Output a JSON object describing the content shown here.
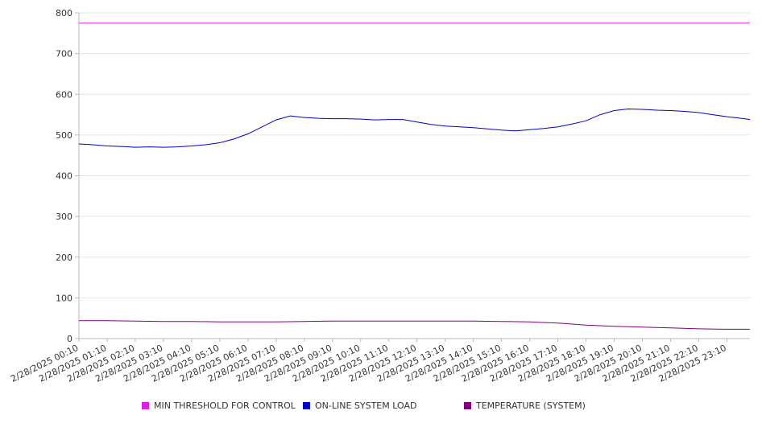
{
  "chart_data": {
    "type": "line",
    "ylim": [
      0,
      800
    ],
    "yticks": [
      0,
      100,
      200,
      300,
      400,
      500,
      600,
      700,
      800
    ],
    "grid": true,
    "legend_position": "bottom",
    "x_range": [
      "2/28/2025 00:10",
      "2/28/2025 23:59"
    ],
    "xtick_labels": [
      "2/28/2025 00:10",
      "2/28/2025 01:10",
      "2/28/2025 02:10",
      "2/28/2025 03:10",
      "2/28/2025 04:10",
      "2/28/2025 05:10",
      "2/28/2025 06:10",
      "2/28/2025 07:10",
      "2/28/2025 08:10",
      "2/28/2025 09:10",
      "2/28/2025 10:10",
      "2/28/2025 11:10",
      "2/28/2025 12:10",
      "2/28/2025 13:10",
      "2/28/2025 14:10",
      "2/28/2025 15:10",
      "2/28/2025 16:10",
      "2/28/2025 17:10",
      "2/28/2025 18:10",
      "2/28/2025 19:10",
      "2/28/2025 20:10",
      "2/28/2025 21:10",
      "2/28/2025 22:10",
      "2/28/2025 23:10"
    ],
    "series": [
      {
        "name": "MIN THRESHOLD FOR CONTROL",
        "color": "#e020e0",
        "points": [
          [
            "2/28/2025 00:10",
            775
          ],
          [
            "2/28/2025 23:59",
            775
          ]
        ]
      },
      {
        "name": "ON-LINE SYSTEM LOAD",
        "color": "#0000cc",
        "points": [
          [
            "2/28/2025 00:10",
            478
          ],
          [
            "2/28/2025 00:40",
            476
          ],
          [
            "2/28/2025 01:10",
            473
          ],
          [
            "2/28/2025 01:40",
            472
          ],
          [
            "2/28/2025 02:10",
            470
          ],
          [
            "2/28/2025 02:40",
            471
          ],
          [
            "2/28/2025 03:10",
            470
          ],
          [
            "2/28/2025 03:40",
            471
          ],
          [
            "2/28/2025 04:10",
            473
          ],
          [
            "2/28/2025 04:40",
            476
          ],
          [
            "2/28/2025 05:10",
            481
          ],
          [
            "2/28/2025 05:40",
            490
          ],
          [
            "2/28/2025 06:10",
            503
          ],
          [
            "2/28/2025 06:40",
            520
          ],
          [
            "2/28/2025 07:10",
            537
          ],
          [
            "2/28/2025 07:40",
            547
          ],
          [
            "2/28/2025 08:10",
            543
          ],
          [
            "2/28/2025 08:40",
            541
          ],
          [
            "2/28/2025 09:10",
            540
          ],
          [
            "2/28/2025 09:40",
            540
          ],
          [
            "2/28/2025 10:10",
            539
          ],
          [
            "2/28/2025 10:40",
            537
          ],
          [
            "2/28/2025 11:10",
            538
          ],
          [
            "2/28/2025 11:40",
            538
          ],
          [
            "2/28/2025 12:10",
            532
          ],
          [
            "2/28/2025 12:40",
            526
          ],
          [
            "2/28/2025 13:10",
            522
          ],
          [
            "2/28/2025 13:40",
            520
          ],
          [
            "2/28/2025 14:10",
            518
          ],
          [
            "2/28/2025 14:40",
            515
          ],
          [
            "2/28/2025 15:10",
            512
          ],
          [
            "2/28/2025 15:40",
            510
          ],
          [
            "2/28/2025 16:10",
            513
          ],
          [
            "2/28/2025 16:40",
            516
          ],
          [
            "2/28/2025 17:10",
            520
          ],
          [
            "2/28/2025 17:40",
            527
          ],
          [
            "2/28/2025 18:10",
            535
          ],
          [
            "2/28/2025 18:40",
            550
          ],
          [
            "2/28/2025 19:10",
            560
          ],
          [
            "2/28/2025 19:40",
            564
          ],
          [
            "2/28/2025 20:10",
            563
          ],
          [
            "2/28/2025 20:40",
            561
          ],
          [
            "2/28/2025 21:10",
            560
          ],
          [
            "2/28/2025 21:40",
            558
          ],
          [
            "2/28/2025 22:10",
            555
          ],
          [
            "2/28/2025 22:40",
            550
          ],
          [
            "2/28/2025 23:10",
            545
          ],
          [
            "2/28/2025 23:40",
            541
          ],
          [
            "2/28/2025 23:59",
            538
          ]
        ]
      },
      {
        "name": "TEMPERATURE (SYSTEM)",
        "color": "#800080",
        "points": [
          [
            "2/28/2025 00:10",
            44
          ],
          [
            "2/28/2025 01:10",
            44
          ],
          [
            "2/28/2025 02:10",
            43
          ],
          [
            "2/28/2025 03:10",
            42
          ],
          [
            "2/28/2025 04:10",
            42
          ],
          [
            "2/28/2025 05:10",
            41
          ],
          [
            "2/28/2025 06:10",
            41
          ],
          [
            "2/28/2025 07:10",
            41
          ],
          [
            "2/28/2025 08:10",
            42
          ],
          [
            "2/28/2025 09:10",
            43
          ],
          [
            "2/28/2025 10:10",
            43
          ],
          [
            "2/28/2025 11:10",
            43
          ],
          [
            "2/28/2025 12:10",
            43
          ],
          [
            "2/28/2025 13:10",
            43
          ],
          [
            "2/28/2025 14:10",
            43
          ],
          [
            "2/28/2025 15:10",
            42
          ],
          [
            "2/28/2025 16:10",
            41
          ],
          [
            "2/28/2025 17:10",
            38
          ],
          [
            "2/28/2025 18:10",
            33
          ],
          [
            "2/28/2025 19:10",
            30
          ],
          [
            "2/28/2025 20:10",
            28
          ],
          [
            "2/28/2025 21:10",
            26
          ],
          [
            "2/28/2025 22:10",
            24
          ],
          [
            "2/28/2025 23:10",
            23
          ],
          [
            "2/28/2025 23:59",
            23
          ]
        ]
      }
    ]
  }
}
